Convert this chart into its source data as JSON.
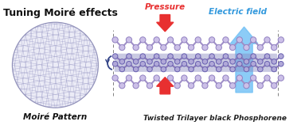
{
  "title": "Tuning Moiré effects",
  "subtitle_structure": "Twisted Trilayer black Phosphorene",
  "label_pressure": "Pressure",
  "label_efield": "Electric field",
  "label_moire": "Moiré Pattern",
  "bg_color": "#ffffff",
  "moire_circle_color": "#c8c8e8",
  "moire_line_color": "#9090c0",
  "atom_color": "#c8b8e8",
  "atom_edge_color": "#8878b8",
  "bond_color": "#9898c8",
  "pressure_arrow_color": "#e83030",
  "efield_arrow_color": "#70c0f5",
  "dashed_line_color": "#808080",
  "title_fontsize": 9,
  "label_fontsize": 7.5,
  "structure_label_fontsize": 6.5
}
